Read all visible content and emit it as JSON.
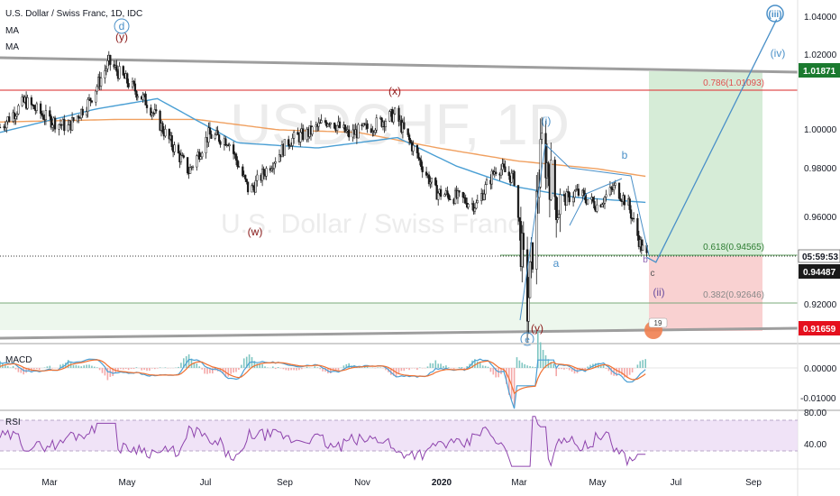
{
  "header": {
    "symbol_title": "U.S. Dollar / Swiss Franc, 1D, IDC",
    "indicator_1": "MA",
    "indicator_2": "MA"
  },
  "watermark": {
    "ticker": "USDCHF, 1D",
    "name": "U.S. Dollar / Swiss Franc"
  },
  "colors": {
    "up_candle": "#1a1a1a",
    "ma_fast": "#4a9fd4",
    "ma_slow": "#f0a060",
    "resistance_line": "#e05050",
    "trendline": "#9e9e9e",
    "long_profit_zone": "#c8e6c9",
    "long_stop_zone": "#f8c6c6",
    "current_price_label": "#1a1a1a",
    "target_label": "#1b7a2f",
    "stop_label": "#e5101e",
    "rsi_band": "#ecdcf5",
    "macd_line": "#4a9fd4",
    "signal_line": "#f07030"
  },
  "price_axis": {
    "ticks": [
      "1.04000",
      "1.02000",
      "1.00000",
      "0.98000",
      "0.96000",
      "0.92000"
    ],
    "label_target": "1.01871",
    "label_countdown": "05:59:53",
    "label_current": "0.94487",
    "label_stop": "0.91659"
  },
  "macd_axis": {
    "ticks": [
      "0.00000",
      "-0.01000"
    ]
  },
  "rsi_axis": {
    "ticks": [
      "80.00",
      "40.00"
    ]
  },
  "time_axis": {
    "ticks": [
      "Mar",
      "May",
      "Jul",
      "Sep",
      "Nov",
      "2020",
      "Mar",
      "May",
      "Jul",
      "Sep"
    ]
  },
  "panes": {
    "macd_label": "MACD",
    "rsi_label": "RSI"
  },
  "fib_levels": [
    {
      "ratio_text": "0.786(1.01093)"
    },
    {
      "ratio_text": "0.618(0.94565)"
    },
    {
      "ratio_text": "0.382(0.92646)"
    }
  ],
  "wave_labels": {
    "d": "d",
    "y_top": "(y)",
    "x": "(x)",
    "w": "(w)",
    "i": "(i)",
    "a": "a",
    "b": "b",
    "c": "c",
    "ii": "(ii)",
    "iv": "(iv)",
    "iii": "(iii)",
    "e": "e",
    "y_bottom": "(y)",
    "b_small": "b"
  },
  "badge": {
    "text": "19"
  },
  "chart_data": {
    "type": "candlestick",
    "title": "U.S. Dollar / Swiss Franc, 1D, IDC",
    "symbol": "USDCHF",
    "interval": "1D",
    "ylim": [
      0.912,
      1.044
    ],
    "x_range": [
      "2019-02",
      "2020-10"
    ],
    "close_path": [
      {
        "x": "2019-02-01",
        "y": 0.995
      },
      {
        "x": "2019-02-20",
        "y": 1.005
      },
      {
        "x": "2019-03-10",
        "y": 0.998
      },
      {
        "x": "2019-03-25",
        "y": 0.995
      },
      {
        "x": "2019-04-10",
        "y": 1.005
      },
      {
        "x": "2019-04-25",
        "y": 1.02
      },
      {
        "x": "2019-05-10",
        "y": 1.012
      },
      {
        "x": "2019-05-25",
        "y": 1.004
      },
      {
        "x": "2019-06-10",
        "y": 0.99
      },
      {
        "x": "2019-06-25",
        "y": 0.978
      },
      {
        "x": "2019-07-10",
        "y": 0.992
      },
      {
        "x": "2019-07-25",
        "y": 0.99
      },
      {
        "x": "2019-08-10",
        "y": 0.97
      },
      {
        "x": "2019-08-25",
        "y": 0.98
      },
      {
        "x": "2019-09-10",
        "y": 0.99
      },
      {
        "x": "2019-09-25",
        "y": 0.993
      },
      {
        "x": "2019-10-10",
        "y": 0.998
      },
      {
        "x": "2019-10-25",
        "y": 0.992
      },
      {
        "x": "2019-11-10",
        "y": 0.995
      },
      {
        "x": "2019-11-29",
        "y": 1.0
      },
      {
        "x": "2019-12-15",
        "y": 0.985
      },
      {
        "x": "2019-12-30",
        "y": 0.97
      },
      {
        "x": "2020-01-15",
        "y": 0.968
      },
      {
        "x": "2020-01-30",
        "y": 0.965
      },
      {
        "x": "2020-02-15",
        "y": 0.98
      },
      {
        "x": "2020-02-28",
        "y": 0.975
      },
      {
        "x": "2020-03-09",
        "y": 0.925
      },
      {
        "x": "2020-03-20",
        "y": 0.988
      },
      {
        "x": "2020-04-01",
        "y": 0.965
      },
      {
        "x": "2020-04-15",
        "y": 0.97
      },
      {
        "x": "2020-05-01",
        "y": 0.965
      },
      {
        "x": "2020-05-15",
        "y": 0.972
      },
      {
        "x": "2020-05-25",
        "y": 0.965
      },
      {
        "x": "2020-06-03",
        "y": 0.95
      },
      {
        "x": "2020-06-08",
        "y": 0.9449
      }
    ],
    "ma_fast": [
      {
        "x": "2019-02-01",
        "y": 0.993
      },
      {
        "x": "2019-04-15",
        "y": 1.002
      },
      {
        "x": "2019-06-01",
        "y": 1.006
      },
      {
        "x": "2019-08-01",
        "y": 0.989
      },
      {
        "x": "2019-10-01",
        "y": 0.987
      },
      {
        "x": "2019-12-01",
        "y": 0.991
      },
      {
        "x": "2020-01-15",
        "y": 0.98
      },
      {
        "x": "2020-03-01",
        "y": 0.972
      },
      {
        "x": "2020-04-15",
        "y": 0.968
      },
      {
        "x": "2020-06-08",
        "y": 0.966
      }
    ],
    "ma_slow": [
      {
        "x": "2019-02-01",
        "y": 0.997
      },
      {
        "x": "2019-05-01",
        "y": 0.998
      },
      {
        "x": "2019-07-01",
        "y": 0.998
      },
      {
        "x": "2019-09-01",
        "y": 0.994
      },
      {
        "x": "2019-11-01",
        "y": 0.993
      },
      {
        "x": "2020-01-01",
        "y": 0.987
      },
      {
        "x": "2020-03-01",
        "y": 0.982
      },
      {
        "x": "2020-05-01",
        "y": 0.979
      },
      {
        "x": "2020-06-08",
        "y": 0.976
      }
    ],
    "horizontal_levels": [
      {
        "y": 1.01093,
        "label": "0.786(1.01093)"
      },
      {
        "y": 0.94565,
        "label": "0.618(0.94565)"
      },
      {
        "y": 0.92646,
        "label": "0.382(0.92646)"
      }
    ],
    "position": {
      "type": "long",
      "entry": 0.94487,
      "target": 1.01871,
      "stop": 0.91659
    },
    "projection_path": [
      {
        "x": "2020-06-08",
        "y": 0.9449
      },
      {
        "x": "2020-06-15",
        "y": 0.943
      },
      {
        "x": "2020-09-15",
        "y": 1.0365
      }
    ],
    "macd": {
      "ylim": [
        -0.012,
        0.006
      ],
      "ticks": [
        0.0,
        -0.01
      ]
    },
    "rsi": {
      "ylim": [
        20,
        85
      ],
      "band": [
        30,
        70
      ],
      "ticks": [
        80,
        40
      ]
    }
  }
}
